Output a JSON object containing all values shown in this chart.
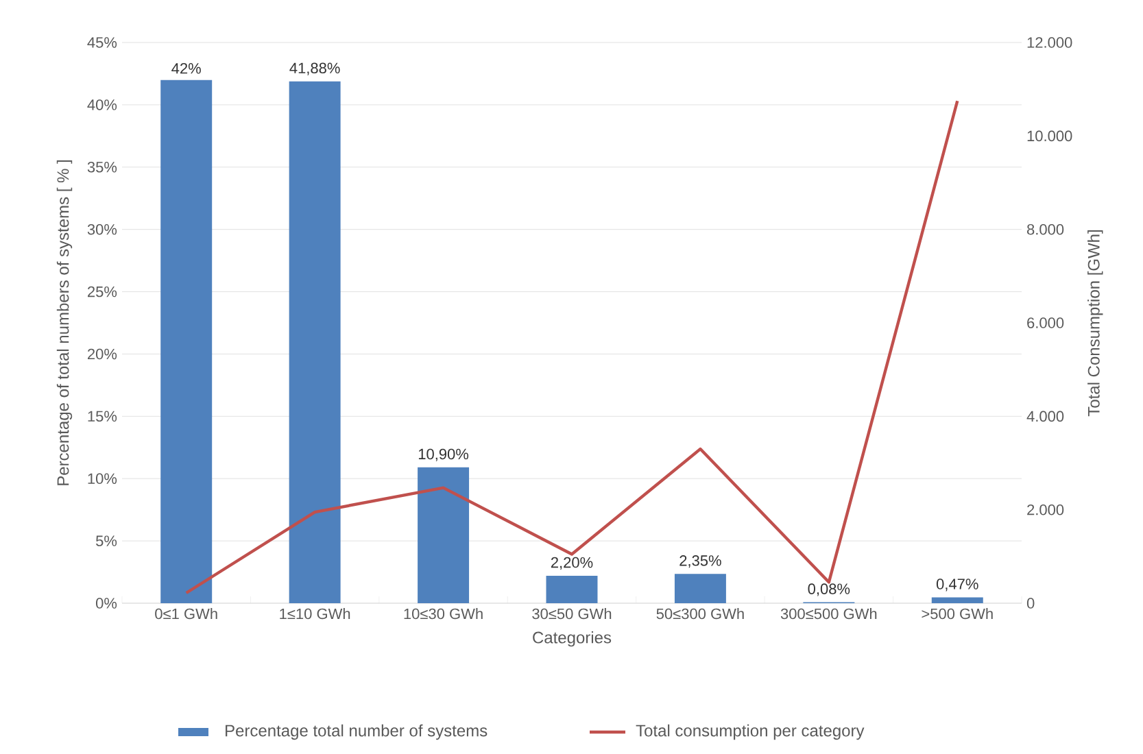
{
  "chart_data": {
    "type": "bar",
    "categories": [
      "0≤1 GWh",
      "1≤10 GWh",
      "10≤30 GWh",
      "30≤50 GWh",
      "50≤300 GWh",
      "300≤500 GWh",
      ">500 GWh"
    ],
    "series": [
      {
        "name": "Percentage total number of systems",
        "color": "#4f81bd",
        "values": [
          42,
          41.88,
          10.9,
          2.2,
          2.35,
          0.08,
          0.47
        ],
        "value_labels": [
          "42%",
          "41,88%",
          "10,90%",
          "2,20%",
          "2,35%",
          "0,08%",
          "0,47%"
        ]
      },
      {
        "name": "Total consumption per category",
        "type": "line",
        "axis": "y2",
        "color": "#c0504d",
        "values": [
          220,
          1950,
          2470,
          1050,
          3300,
          450,
          10750
        ]
      }
    ],
    "xlabel": "Categories",
    "ylabel": "Percentage of total numbers of systems [ % ]",
    "y2label": "Total Consumption [GWh]",
    "ylim": [
      0,
      45
    ],
    "yticks": [
      {
        "value": 0,
        "label": "0%"
      },
      {
        "value": 5,
        "label": "5%"
      },
      {
        "value": 10,
        "label": "10%"
      },
      {
        "value": 15,
        "label": "15%"
      },
      {
        "value": 20,
        "label": "20%"
      },
      {
        "value": 25,
        "label": "25%"
      },
      {
        "value": 30,
        "label": "30%"
      },
      {
        "value": 35,
        "label": "35%"
      },
      {
        "value": 40,
        "label": "40%"
      },
      {
        "value": 45,
        "label": "45%"
      }
    ],
    "y2lim": [
      0,
      12000
    ],
    "y2ticks": [
      0,
      {
        "value": 2000,
        "label": "2.000"
      },
      {
        "value": 4000,
        "label": "4.000"
      },
      {
        "value": 6000,
        "label": "6.000"
      },
      {
        "value": 8000,
        "label": "8.000"
      },
      {
        "value": 10000,
        "label": "10.000"
      },
      {
        "value": 12000,
        "label": "12.000"
      }
    ],
    "grid": "y",
    "legend": "bottom"
  }
}
